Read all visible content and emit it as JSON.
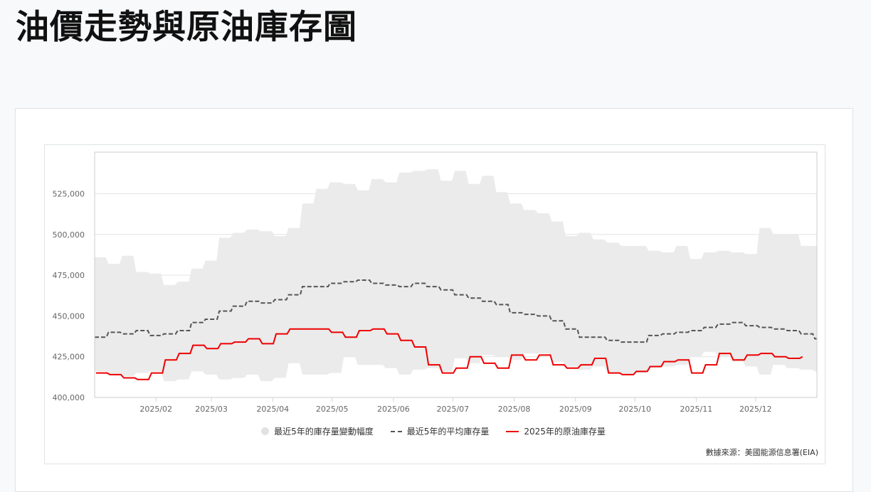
{
  "page": {
    "title": "油價走勢與原油庫存圖"
  },
  "legend": {
    "range_label": "最近5年的庫存量變動幅度",
    "avg_label": "最近5年的平均庫存量",
    "current_label": "2025年的原油庫存量"
  },
  "source": "數據來源：美國能源信息署(EIA)",
  "colors": {
    "band": "#ebebeb",
    "avg_line": "#555555",
    "current_line": "#ee0000",
    "grid": "#e4e4e4",
    "axis": "#ccd6e0"
  },
  "chart_data": {
    "type": "line",
    "title": "油價走勢與原油庫存圖",
    "xlabel": "",
    "ylabel": "",
    "ylim": [
      400000,
      540000
    ],
    "grid": true,
    "legend_position": "bottom",
    "y_ticks": [
      "400,000",
      "425,000",
      "450,000",
      "475,000",
      "500,000",
      "525,000"
    ],
    "x_ticks": [
      "2025/02",
      "2025/03",
      "2025/04",
      "2025/05",
      "2025/06",
      "2025/07",
      "2025/08",
      "2025/09",
      "2025/10",
      "2025/11",
      "2025/12"
    ],
    "x_tick_days": [
      31,
      59,
      90,
      120,
      151,
      181,
      212,
      243,
      273,
      304,
      334
    ],
    "x_range_days": [
      0,
      365
    ],
    "week_days": [
      0,
      7,
      14,
      21,
      28,
      35,
      42,
      49,
      56,
      63,
      70,
      77,
      84,
      91,
      98,
      105,
      112,
      119,
      126,
      133,
      140,
      147,
      154,
      161,
      168,
      175,
      182,
      189,
      196,
      203,
      210,
      217,
      224,
      231,
      238,
      245,
      252,
      259,
      266,
      273,
      280,
      287,
      294,
      301,
      308,
      315,
      322,
      329,
      336,
      343,
      350,
      357,
      364
    ],
    "series": [
      {
        "name": "最近5年的庫存量變動幅度 (上限)",
        "style": "area-upper",
        "values": [
          486000,
          482000,
          487000,
          477000,
          476000,
          469000,
          471000,
          479000,
          484000,
          498000,
          501000,
          503000,
          502000,
          499000,
          504000,
          519000,
          528000,
          532000,
          531000,
          527000,
          534000,
          532000,
          538000,
          539000,
          540000,
          533000,
          539000,
          531000,
          536000,
          526000,
          519000,
          515000,
          513000,
          508000,
          499000,
          501000,
          497000,
          495000,
          493000,
          493000,
          490000,
          489000,
          493000,
          485000,
          489000,
          490000,
          489000,
          488000,
          504000,
          500000,
          500000,
          493000,
          493000
        ]
      },
      {
        "name": "最近5年的庫存量變動幅度 (下限)",
        "style": "area-lower",
        "values": [
          416000,
          414000,
          413000,
          415000,
          416000,
          410000,
          411000,
          416000,
          414000,
          411000,
          412000,
          414000,
          410000,
          412000,
          421000,
          414000,
          414000,
          415000,
          425000,
          420000,
          420000,
          418000,
          414000,
          417000,
          418000,
          416000,
          424000,
          421000,
          426000,
          425000,
          423000,
          427000,
          427000,
          422000,
          419000,
          417000,
          419000,
          415000,
          414000,
          415000,
          418000,
          419000,
          420000,
          425000,
          428000,
          425000,
          422000,
          419000,
          414000,
          420000,
          418000,
          417000,
          416000
        ]
      },
      {
        "name": "最近5年的平均庫存量",
        "style": "dashed",
        "values": [
          437000,
          440000,
          439000,
          441000,
          438000,
          439000,
          441000,
          446000,
          448000,
          453000,
          456000,
          459000,
          458000,
          460000,
          463000,
          468000,
          468000,
          470000,
          471000,
          472000,
          470000,
          469000,
          468000,
          470000,
          468000,
          466000,
          463000,
          461000,
          459000,
          457000,
          452000,
          451000,
          450000,
          447000,
          442000,
          437000,
          437000,
          435000,
          434000,
          434000,
          438000,
          439000,
          440000,
          441000,
          443000,
          445000,
          446000,
          444000,
          443000,
          442000,
          441000,
          439000,
          436000
        ]
      },
      {
        "name": "2025年的原油庫存量",
        "style": "solid",
        "values": [
          415000,
          414000,
          412000,
          411000,
          415000,
          423000,
          427000,
          432000,
          430000,
          433000,
          434000,
          436000,
          433000,
          439000,
          442000,
          442000,
          442000,
          440000,
          437000,
          441000,
          442000,
          439000,
          435000,
          431000,
          420000,
          415000,
          418000,
          425000,
          421000,
          418000,
          426000,
          423000,
          426000,
          420000,
          418000,
          420000,
          424000,
          415000,
          414000,
          416000,
          419000,
          422000,
          423000,
          415000,
          420000,
          427000,
          423000,
          426000,
          427000,
          425000,
          424000,
          425000
        ]
      }
    ]
  }
}
